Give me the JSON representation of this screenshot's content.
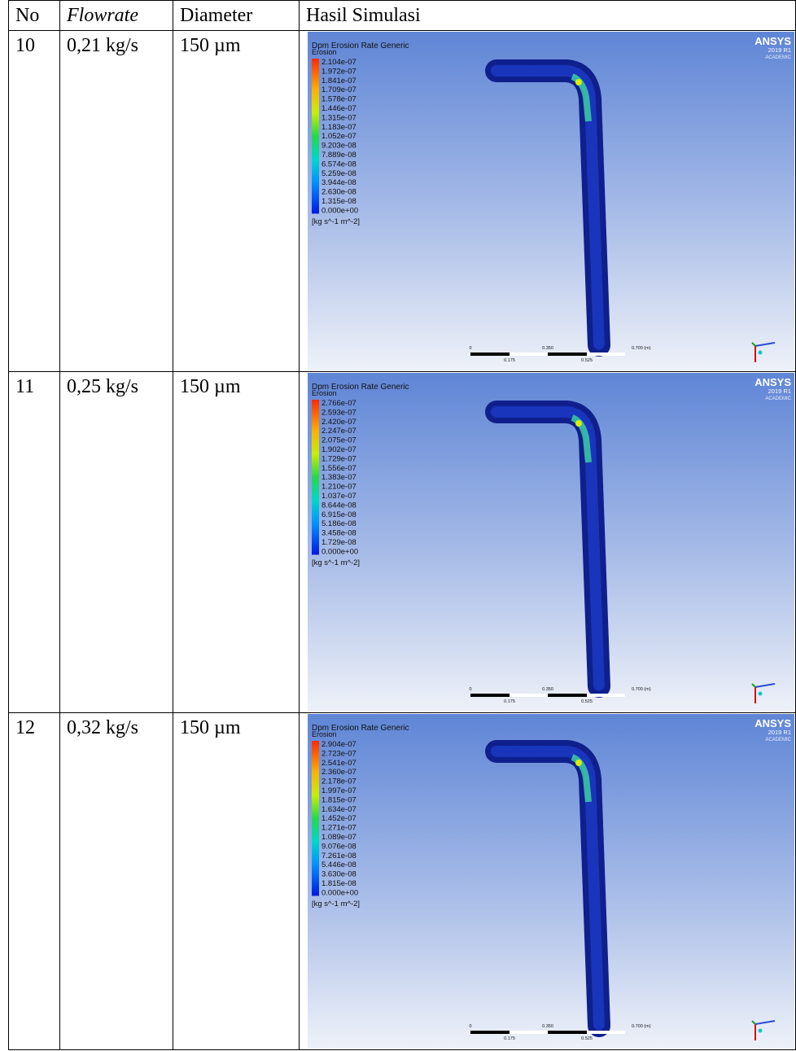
{
  "table": {
    "header": [
      "No",
      "Flowrate",
      "Diameter",
      "Hasil Simulasi"
    ],
    "rows": [
      {
        "no": "10",
        "flowrate": "0,21 kg/s",
        "diameter": "150 µm",
        "simulation": {
          "title": "Dpm Erosion Rate Generic",
          "subtitle": "Erosion",
          "legend": [
            "2.104e-07",
            "1.972e-07",
            "1.841e-07",
            "1.709e-07",
            "1.578e-07",
            "1.446e-07",
            "1.315e-07",
            "1.183e-07",
            "1.052e-07",
            "9.203e-08",
            "7.889e-08",
            "6.574e-08",
            "5.259e-08",
            "3.944e-08",
            "2.630e-08",
            "1.315e-08",
            "0.000e+00"
          ],
          "unit": "[kg s^-1 m^-2]",
          "logo": "ANSYS",
          "version": "2019 R1",
          "edition": "ACADEMIC",
          "scale_top": [
            "0",
            "0.350",
            "0.700 (m)"
          ],
          "scale_bottom": [
            "0.175",
            "0.525"
          ]
        }
      },
      {
        "no": "11",
        "flowrate": "0,25 kg/s",
        "diameter": "150 µm",
        "simulation": {
          "title": "Dpm Erosion Rate Generic",
          "subtitle": "Erosion",
          "legend": [
            "2.766e-07",
            "2.593e-07",
            "2.420e-07",
            "2.247e-07",
            "2.075e-07",
            "1.902e-07",
            "1.729e-07",
            "1.556e-07",
            "1.383e-07",
            "1.210e-07",
            "1.037e-07",
            "8.644e-08",
            "6.915e-08",
            "5.186e-08",
            "3.458e-08",
            "1.729e-08",
            "0.000e+00"
          ],
          "unit": "[kg s^-1 m^-2]",
          "logo": "ANSYS",
          "version": "2019 R1",
          "edition": "ACADEMIC",
          "scale_top": [
            "0",
            "0.350",
            "0.700 (m)"
          ],
          "scale_bottom": [
            "0.175",
            "0.525"
          ]
        }
      },
      {
        "no": "12",
        "flowrate": "0,32 kg/s",
        "diameter": "150 µm",
        "simulation": {
          "title": "Dpm Erosion Rate Generic",
          "subtitle": "Erosion",
          "legend": [
            "2.904e-07",
            "2.723e-07",
            "2.541e-07",
            "2.360e-07",
            "2.178e-07",
            "1.997e-07",
            "1.815e-07",
            "1.634e-07",
            "1.452e-07",
            "1.271e-07",
            "1.089e-07",
            "9.076e-08",
            "7.261e-08",
            "5.446e-08",
            "3.630e-08",
            "1.815e-08",
            "0.000e+00"
          ],
          "unit": "[kg s^-1 m^-2]",
          "logo": "ANSYS",
          "version": "2019 R1",
          "edition": "ACADEMIC",
          "scale_top": [
            "0",
            "0.350",
            "0.700 (m)"
          ],
          "scale_bottom": [
            "0.175",
            "0.525"
          ]
        }
      }
    ]
  }
}
